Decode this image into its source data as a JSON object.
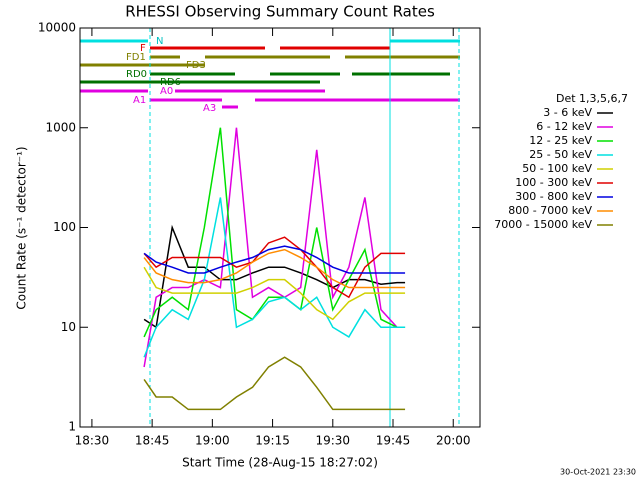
{
  "chart_data": {
    "type": "line",
    "title": "RHESSI Observing Summary Count Rates",
    "x_label": "Start Time (28-Aug-15 18:27:02)",
    "y_label": "Count Rate (s⁻¹ detector⁻¹)",
    "footer": "30-Oct-2021 23:30",
    "log_y": true,
    "legend_position": "right",
    "legend_title": "Det 1,3,5,6,7",
    "annotations": [
      "N",
      "F",
      "FD1",
      "FD3",
      "RD0",
      "RD6",
      "A0",
      "A1",
      "A3"
    ],
    "xlim": [
      "18:27:02",
      "20:06:40"
    ],
    "xticks": [
      "18:30",
      "18:45",
      "19:00",
      "19:15",
      "19:30",
      "19:45",
      "20:00"
    ],
    "ylim": [
      1,
      10000
    ],
    "yticks": [
      1,
      10,
      100,
      1000,
      10000
    ],
    "x": [
      "18:43",
      "18:46",
      "18:50",
      "18:54",
      "18:58",
      "19:02",
      "19:06",
      "19:10",
      "19:14",
      "19:18",
      "19:22",
      "19:26",
      "19:30",
      "19:34",
      "19:38",
      "19:42",
      "19:46",
      "19:48"
    ],
    "series": [
      {
        "name": "3 - 6 keV",
        "color": "#000000",
        "values": [
          12,
          10,
          100,
          40,
          40,
          30,
          30,
          35,
          40,
          40,
          35,
          30,
          25,
          30,
          30,
          27,
          28,
          28
        ]
      },
      {
        "name": "6 - 12 keV",
        "color": "#e000e0",
        "values": [
          4,
          20,
          25,
          25,
          30,
          25,
          1000,
          20,
          25,
          20,
          25,
          600,
          20,
          40,
          200,
          15,
          10,
          10
        ]
      },
      {
        "name": "12 - 25 keV",
        "color": "#00e000",
        "values": [
          8,
          15,
          20,
          15,
          100,
          1000,
          15,
          12,
          20,
          20,
          15,
          100,
          15,
          30,
          60,
          12,
          10,
          10
        ]
      },
      {
        "name": "25 - 50 keV",
        "color": "#00e0e0",
        "values": [
          5,
          10,
          15,
          12,
          30,
          200,
          10,
          12,
          18,
          20,
          15,
          20,
          10,
          8,
          15,
          10,
          10,
          10
        ]
      },
      {
        "name": "50 - 100 keV",
        "color": "#d0d000",
        "values": [
          40,
          25,
          22,
          22,
          22,
          22,
          22,
          25,
          30,
          30,
          22,
          15,
          12,
          18,
          22,
          22,
          22,
          22
        ]
      },
      {
        "name": "100 - 300 keV",
        "color": "#e00000",
        "values": [
          55,
          40,
          50,
          50,
          50,
          50,
          40,
          45,
          70,
          80,
          60,
          40,
          25,
          20,
          40,
          55,
          55,
          55
        ]
      },
      {
        "name": "300 - 800 keV",
        "color": "#0000e0",
        "values": [
          55,
          45,
          40,
          35,
          35,
          40,
          45,
          50,
          60,
          65,
          60,
          50,
          40,
          35,
          35,
          35,
          35,
          35
        ]
      },
      {
        "name": "800 - 7000 keV",
        "color": "#ff8c00",
        "values": [
          50,
          35,
          30,
          28,
          28,
          30,
          35,
          45,
          55,
          60,
          50,
          40,
          30,
          25,
          25,
          25,
          25,
          25
        ]
      },
      {
        "name": "7000 - 15000 keV",
        "color": "#808000",
        "values": [
          3,
          2,
          2,
          1.5,
          1.5,
          1.5,
          2,
          2.5,
          4,
          5,
          4,
          2.5,
          1.5,
          1.5,
          1.5,
          1.5,
          1.5,
          1.5
        ]
      }
    ]
  }
}
